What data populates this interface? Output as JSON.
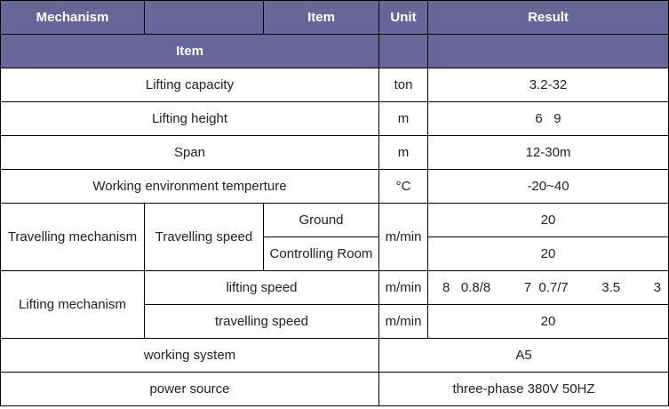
{
  "header": {
    "mechanism": "Mechanism",
    "item": "Item",
    "unit": "Unit",
    "result": "Result",
    "item2": "Item"
  },
  "colors": {
    "header_bg": "#666699",
    "header_text": "#ffffff"
  },
  "rows": {
    "capacity": {
      "label": "Lifting capacity",
      "unit": "ton",
      "result": "3.2-32"
    },
    "height": {
      "label": "Lifting height",
      "unit": "m",
      "result": "6   9"
    },
    "span": {
      "label": "Span",
      "unit": "m",
      "result": "12-30m"
    },
    "temp": {
      "label": "Working environment temperture",
      "unit": "°C",
      "result": "-20~40"
    },
    "travel": {
      "mechanism": "Travelling mechanism",
      "item": "Travelling speed",
      "sub1": "Ground",
      "sub2": "Controlling Room",
      "unit": "m/min",
      "result1": "20",
      "result2": "20"
    },
    "lifting": {
      "mechanism": "Lifting mechanism",
      "item1": "lifting speed",
      "unit1": "m/min",
      "result1": "8   0.8/8         7  0.7/7         3.5         3",
      "item2": "travelling speed",
      "unit2": "m/min",
      "result2": "20"
    },
    "system": {
      "label": "working system",
      "result": "A5"
    },
    "power": {
      "label": "power source",
      "result": "three-phase 380V 50HZ"
    }
  }
}
